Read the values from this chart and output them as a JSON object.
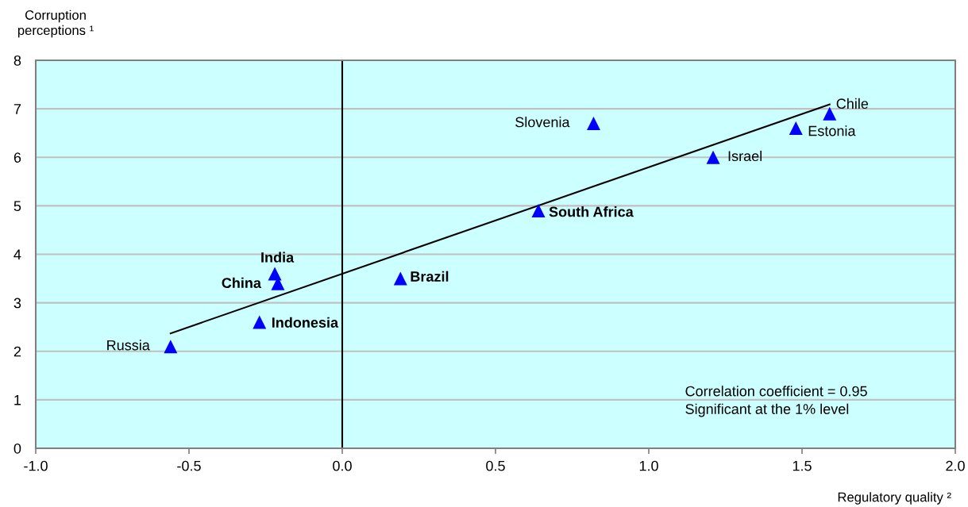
{
  "chart_data": {
    "type": "scatter",
    "ylabel": "Corruption\nperceptions ¹",
    "xlabel": "Regulatory quality ²",
    "series": [
      {
        "color": "#0000ff",
        "x": [
          -0.56,
          0.82,
          1.21,
          1.48,
          1.59
        ],
        "values": [
          2.1,
          6.7,
          6.0,
          6.6,
          6.9
        ]
      },
      {
        "color": "#0000ff",
        "x": [
          -0.27,
          -0.21,
          -0.22,
          0.19,
          0.64
        ],
        "values": [
          2.6,
          3.4,
          3.6,
          3.5,
          4.9
        ]
      },
      {
        "type": "line",
        "color": "#000000",
        "marker": "none",
        "x": [
          -0.56,
          1.59
        ],
        "values": [
          2.37,
          7.09
        ]
      }
    ],
    "annotations": [
      {
        "text": "Russia",
        "x": -0.56,
        "y": 2.1
      },
      {
        "text": "Slovenia",
        "x": 0.82,
        "y": 6.7
      },
      {
        "text": "Israel",
        "x": 1.21,
        "y": 6.0
      },
      {
        "text": "Estonia",
        "x": 1.48,
        "y": 6.6
      },
      {
        "text": "Chile",
        "x": 1.59,
        "y": 6.9
      },
      {
        "text": "Indonesia",
        "x": -0.27,
        "y": 2.6
      },
      {
        "text": "China",
        "x": -0.21,
        "y": 3.4
      },
      {
        "text": "India",
        "x": -0.22,
        "y": 3.6
      },
      {
        "text": "Brazil",
        "x": 0.19,
        "y": 3.5
      },
      {
        "text": "South Africa",
        "x": 0.64,
        "y": 4.9
      },
      "Correlation coefficient = 0.95",
      "Significant at the 1% level"
    ],
    "xlim": [
      -1,
      2
    ],
    "xticks": [
      {
        "value": -1,
        "label": "-1.0"
      },
      {
        "value": -0.5,
        "label": "-0.5"
      },
      {
        "value": 0,
        "label": "0.0"
      },
      {
        "value": 0.5,
        "label": "0.5"
      },
      {
        "value": 1,
        "label": "1.0"
      },
      {
        "value": 1.5,
        "label": "1.5"
      },
      {
        "value": 2,
        "label": "2.0"
      }
    ],
    "ylim": [
      0,
      8
    ],
    "yticks": [
      0,
      1,
      2,
      3,
      4,
      5,
      6,
      7,
      8
    ],
    "ref_lines": [
      {
        "axis": "x",
        "value": 0,
        "color": "#000000"
      }
    ],
    "grid": "y",
    "marker": "triangle",
    "line_style": "solid"
  }
}
